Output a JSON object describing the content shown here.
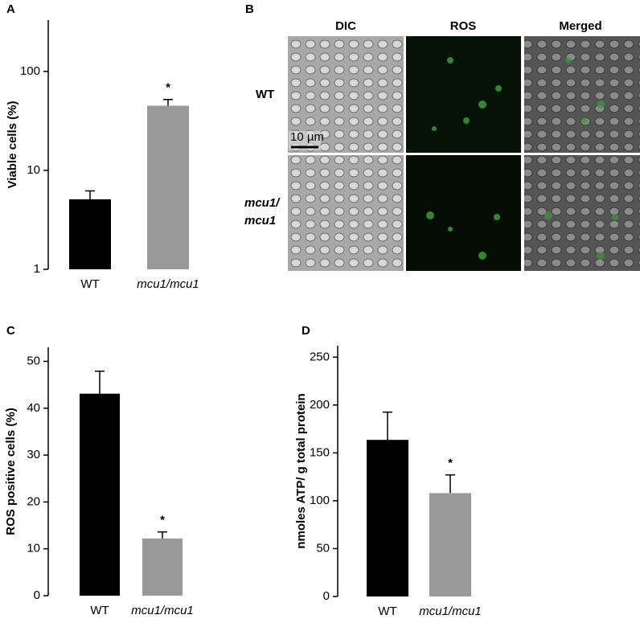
{
  "chart_data": [
    {
      "type": "bar",
      "panel_label": "A",
      "y_label": "Viable cells (%)",
      "categories": [
        "WT",
        "mcu1/mcu1"
      ],
      "values": [
        5.1,
        45
      ],
      "errors": [
        1.1,
        7
      ],
      "significance": [
        null,
        "*"
      ],
      "colors": [
        "#000000",
        "#999999"
      ],
      "log_scale": true,
      "ylim": [
        1,
        330
      ],
      "yticks": [
        1,
        10,
        100
      ]
    },
    {
      "type": "bar",
      "panel_label": "C",
      "y_label": "ROS positive cells (%)",
      "categories": [
        "WT",
        "mcu1/mcu1"
      ],
      "values": [
        43.1,
        12.2
      ],
      "errors": [
        4.8,
        1.4
      ],
      "significance": [
        null,
        "*"
      ],
      "colors": [
        "#000000",
        "#999999"
      ],
      "log_scale": false,
      "ylim": [
        0,
        53
      ],
      "yticks": [
        0,
        10,
        20,
        30,
        40,
        50
      ]
    },
    {
      "type": "bar",
      "panel_label": "D",
      "y_label": "nmoles ATP/ g total protein",
      "categories": [
        "WT",
        "mcu1/mcu1"
      ],
      "values": [
        163.6,
        108
      ],
      "errors": [
        29,
        19
      ],
      "significance": [
        null,
        "*"
      ],
      "colors": [
        "#000000",
        "#999999"
      ],
      "log_scale": false,
      "ylim": [
        0,
        262
      ],
      "yticks": [
        0,
        50,
        100,
        150,
        200,
        250
      ]
    }
  ],
  "panel_b": {
    "label": "B",
    "columns": [
      "DIC",
      "ROS",
      "Merged"
    ],
    "rows": [
      [
        "WT"
      ],
      [
        "mcu1/",
        "mcu1"
      ]
    ],
    "scale_bar": "10 µm"
  }
}
